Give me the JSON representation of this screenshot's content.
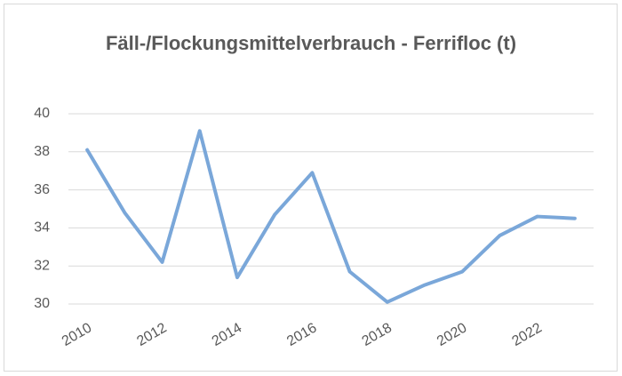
{
  "chart_data": {
    "type": "line",
    "title": "Fäll-/Flockungsmittelverbrauch - Ferrifloc (t)",
    "categories": [
      "2010",
      null,
      "2012",
      null,
      "2014",
      null,
      "2016",
      null,
      "2018",
      null,
      "2020",
      null,
      "2022",
      null
    ],
    "values": [
      38.1,
      34.8,
      32.2,
      39.1,
      31.4,
      34.7,
      36.9,
      31.7,
      30.1,
      31.0,
      31.7,
      33.6,
      34.6,
      34.5
    ],
    "color": "#7aa7d9",
    "ylim": [
      30,
      40
    ],
    "yticks": [
      30,
      32,
      34,
      36,
      38,
      40
    ],
    "grid": true
  }
}
